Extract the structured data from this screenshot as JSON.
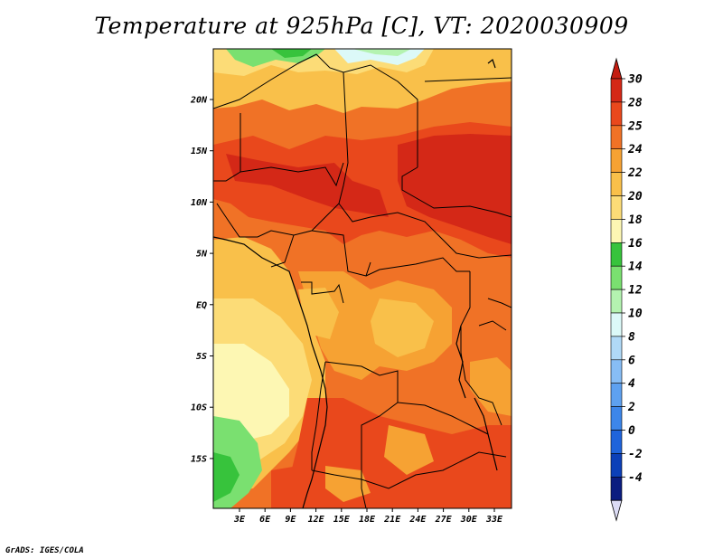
{
  "title": "Temperature at 925hPa [C], VT: 2020030909",
  "credit": "GrADS: IGES/COLA",
  "map": {
    "lat_labels": [
      "20N",
      "15N",
      "10N",
      "5N",
      "EQ",
      "5S",
      "10S",
      "15S"
    ],
    "lon_labels": [
      "3E",
      "6E",
      "9E",
      "12E",
      "15E",
      "18E",
      "21E",
      "24E",
      "27E",
      "30E",
      "33E"
    ]
  },
  "colorbar": {
    "labels": [
      "30",
      "28",
      "25",
      "24",
      "22",
      "20",
      "18",
      "16",
      "14",
      "12",
      "10",
      "8",
      "6",
      "4",
      "2",
      "0",
      "-2",
      "-4"
    ],
    "colors": [
      "#d42817",
      "#e9481c",
      "#f07226",
      "#f6a233",
      "#f9c04a",
      "#fcdc77",
      "#fdf7b3",
      "#37c33c",
      "#7ae070",
      "#b4f3b0",
      "#dcf9f8",
      "#b0d9f7",
      "#87bdf5",
      "#5ea1f0",
      "#3d86ea",
      "#1f64db",
      "#0c40b8",
      "#0b1d80"
    ],
    "top_arrow_color": "#c41c10",
    "bottom_arrow_color": "#dcdcf5"
  }
}
